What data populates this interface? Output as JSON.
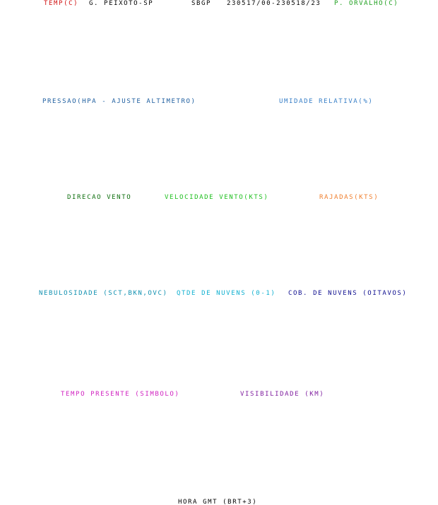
{
  "header": {
    "temperature": "TEMP(C)",
    "station": "G. PEIXOTO-SP",
    "code": "SBGP",
    "period": "230517/00-230518/23",
    "dew_point": "P. ORVALHO(C)"
  },
  "row_1": {
    "pressure": "PRESSAO(HPA - AJUSTE ALTIMETRO)",
    "humidity": "UMIDADE RELATIVA(%)"
  },
  "row_2": {
    "wind_direction": "DIRECAO VENTO",
    "wind_speed": "VELOCIDADE VENTO(KTS)",
    "gusts": "RAJADAS(KTS)"
  },
  "row_3": {
    "cloudiness": "NEBULOSIDADE (SCT,BKN,OVC)",
    "cloud_amount": "QTDE DE NUVENS (0-1)",
    "cloud_cover": "COB. DE NUVENS (OITAVOS)"
  },
  "row_4": {
    "present_weather": "TEMPO PRESENTE (SIMBOLO)",
    "visibility": "VISIBILIDADE (KM)"
  },
  "footer": {
    "time_axis": "HORA GMT (BRT+3)"
  }
}
